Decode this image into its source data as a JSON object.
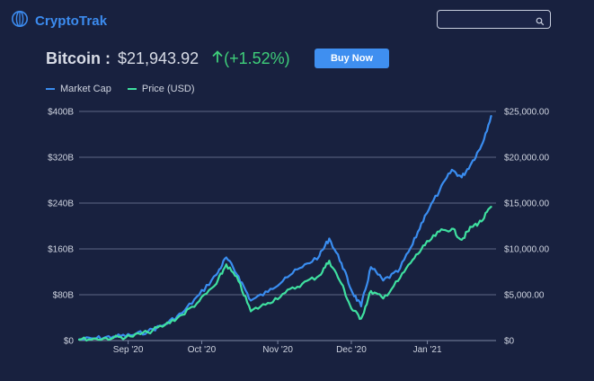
{
  "app": {
    "name": "CryptoTrak",
    "search": {
      "placeholder": "",
      "value": ""
    }
  },
  "headline": {
    "coin": "Bitcoin :",
    "price": "$21,943.92",
    "change": "(+1.52%)",
    "buy_label": "Buy Now"
  },
  "colors": {
    "background": "#18213f",
    "accent": "#3f8ff0",
    "market_cap_line": "#3a8df0",
    "price_line": "#3fe0a0",
    "positive": "#3fcf7a"
  },
  "icons": {
    "logo": "globe-icon",
    "search": "search-icon",
    "change": "arrow-up-icon"
  },
  "chart_data": {
    "type": "line",
    "title": "",
    "grid": true,
    "legend_placement": "top-left",
    "x_ticks": [
      "Sep '20",
      "Oct '20",
      "Nov '20",
      "Dec '20",
      "Jan '21"
    ],
    "x_tick_dates": [
      "2020-09-01",
      "2020-10-01",
      "2020-11-01",
      "2020-12-01",
      "2021-01-01"
    ],
    "xlim": [
      "2020-08-12",
      "2021-01-29"
    ],
    "y_left": {
      "ticks": [
        "$0",
        "$80B",
        "$160B",
        "$240B",
        "$320B",
        "$400B"
      ],
      "ylim": [
        0,
        400
      ]
    },
    "y_right": {
      "ticks": [
        "$0",
        "$5,000.00",
        "$10,000.00",
        "$15,000.00",
        "$20,000.00",
        "$25,000.00"
      ],
      "ylim": [
        0,
        25000
      ]
    },
    "series": [
      {
        "name": "Market Cap",
        "axis": "left",
        "unit": "B USD",
        "points": [
          [
            "2020-08-12",
            2
          ],
          [
            "2020-08-19",
            4
          ],
          [
            "2020-08-26",
            7
          ],
          [
            "2020-09-02",
            9
          ],
          [
            "2020-09-09",
            16
          ],
          [
            "2020-09-16",
            28
          ],
          [
            "2020-09-23",
            48
          ],
          [
            "2020-09-30",
            80
          ],
          [
            "2020-10-07",
            115
          ],
          [
            "2020-10-11",
            145
          ],
          [
            "2020-10-16",
            112
          ],
          [
            "2020-10-21",
            70
          ],
          [
            "2020-10-28",
            85
          ],
          [
            "2020-11-04",
            110
          ],
          [
            "2020-11-11",
            128
          ],
          [
            "2020-11-18",
            148
          ],
          [
            "2020-11-22",
            178
          ],
          [
            "2020-11-27",
            135
          ],
          [
            "2020-12-01",
            88
          ],
          [
            "2020-12-05",
            60
          ],
          [
            "2020-12-09",
            128
          ],
          [
            "2020-12-14",
            105
          ],
          [
            "2020-12-20",
            120
          ],
          [
            "2020-12-26",
            168
          ],
          [
            "2020-12-31",
            218
          ],
          [
            "2021-01-06",
            262
          ],
          [
            "2021-01-11",
            298
          ],
          [
            "2021-01-15",
            285
          ],
          [
            "2021-01-19",
            310
          ],
          [
            "2021-01-23",
            340
          ],
          [
            "2021-01-27",
            392
          ]
        ]
      },
      {
        "name": "Price (USD)",
        "axis": "right",
        "unit": "USD",
        "points": [
          [
            "2020-08-12",
            100
          ],
          [
            "2020-08-19",
            200
          ],
          [
            "2020-08-26",
            300
          ],
          [
            "2020-09-02",
            450
          ],
          [
            "2020-09-09",
            900
          ],
          [
            "2020-09-16",
            1700
          ],
          [
            "2020-09-23",
            2800
          ],
          [
            "2020-09-30",
            4300
          ],
          [
            "2020-10-07",
            6200
          ],
          [
            "2020-10-11",
            8300
          ],
          [
            "2020-10-16",
            6500
          ],
          [
            "2020-10-21",
            3200
          ],
          [
            "2020-10-28",
            4100
          ],
          [
            "2020-11-04",
            5200
          ],
          [
            "2020-11-11",
            6200
          ],
          [
            "2020-11-18",
            7100
          ],
          [
            "2020-11-22",
            8700
          ],
          [
            "2020-11-27",
            6200
          ],
          [
            "2020-12-01",
            3500
          ],
          [
            "2020-12-05",
            2400
          ],
          [
            "2020-12-09",
            5400
          ],
          [
            "2020-12-14",
            4600
          ],
          [
            "2020-12-20",
            6500
          ],
          [
            "2020-12-26",
            8800
          ],
          [
            "2020-12-31",
            10400
          ],
          [
            "2021-01-06",
            11900
          ],
          [
            "2021-01-11",
            12200
          ],
          [
            "2021-01-15",
            11000
          ],
          [
            "2021-01-19",
            12400
          ],
          [
            "2021-01-23",
            13000
          ],
          [
            "2021-01-27",
            14600
          ]
        ]
      }
    ]
  }
}
